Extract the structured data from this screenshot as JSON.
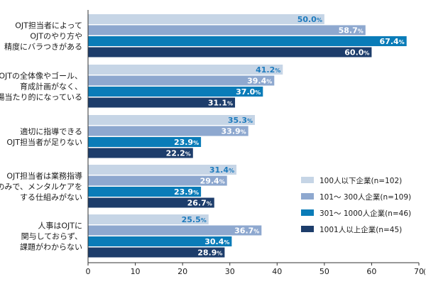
{
  "chart_data": {
    "type": "bar",
    "orientation": "horizontal",
    "categories": [
      [
        "OJT担当者によって",
        "OJTのやり方や",
        "精度にバラつきがある"
      ],
      [
        "OJTの全体像やゴール、",
        "育成計画がなく、",
        "場当たり的になっている"
      ],
      [
        "適切に指導できる",
        "OJT担当者が足りない"
      ],
      [
        "OJT担当者は業務指導",
        "のみで、メンタルケアを",
        "する仕組みがない"
      ],
      [
        "人事はOJTに",
        "関与しておらず、",
        "課題がわからない"
      ]
    ],
    "series": [
      {
        "name": "100人以下企業(n=102)",
        "color": "#c6d5e6",
        "label_color": "#1e7bbd",
        "values": [
          50.0,
          41.2,
          35.3,
          31.4,
          25.5
        ]
      },
      {
        "name": "101～ 300人企業(n=109)",
        "color": "#8ea8cf",
        "label_color": "#ffffff",
        "values": [
          58.7,
          39.4,
          33.9,
          29.4,
          36.7
        ]
      },
      {
        "name": "301～ 1000人企業(n=46)",
        "color": "#0a7cb8",
        "label_color": "#ffffff",
        "values": [
          67.4,
          37.0,
          23.9,
          23.9,
          30.4
        ]
      },
      {
        "name": "1001人以上企業(n=45)",
        "color": "#1d3d6b",
        "label_color": "#ffffff",
        "values": [
          60.0,
          31.1,
          22.2,
          26.7,
          28.9
        ]
      }
    ],
    "value_suffix": "%",
    "xlim": [
      0,
      70
    ],
    "xticks": [
      0,
      10,
      20,
      30,
      40,
      50,
      60,
      70
    ],
    "x_unit": "(%)",
    "legend_position": "right",
    "grid": false
  }
}
